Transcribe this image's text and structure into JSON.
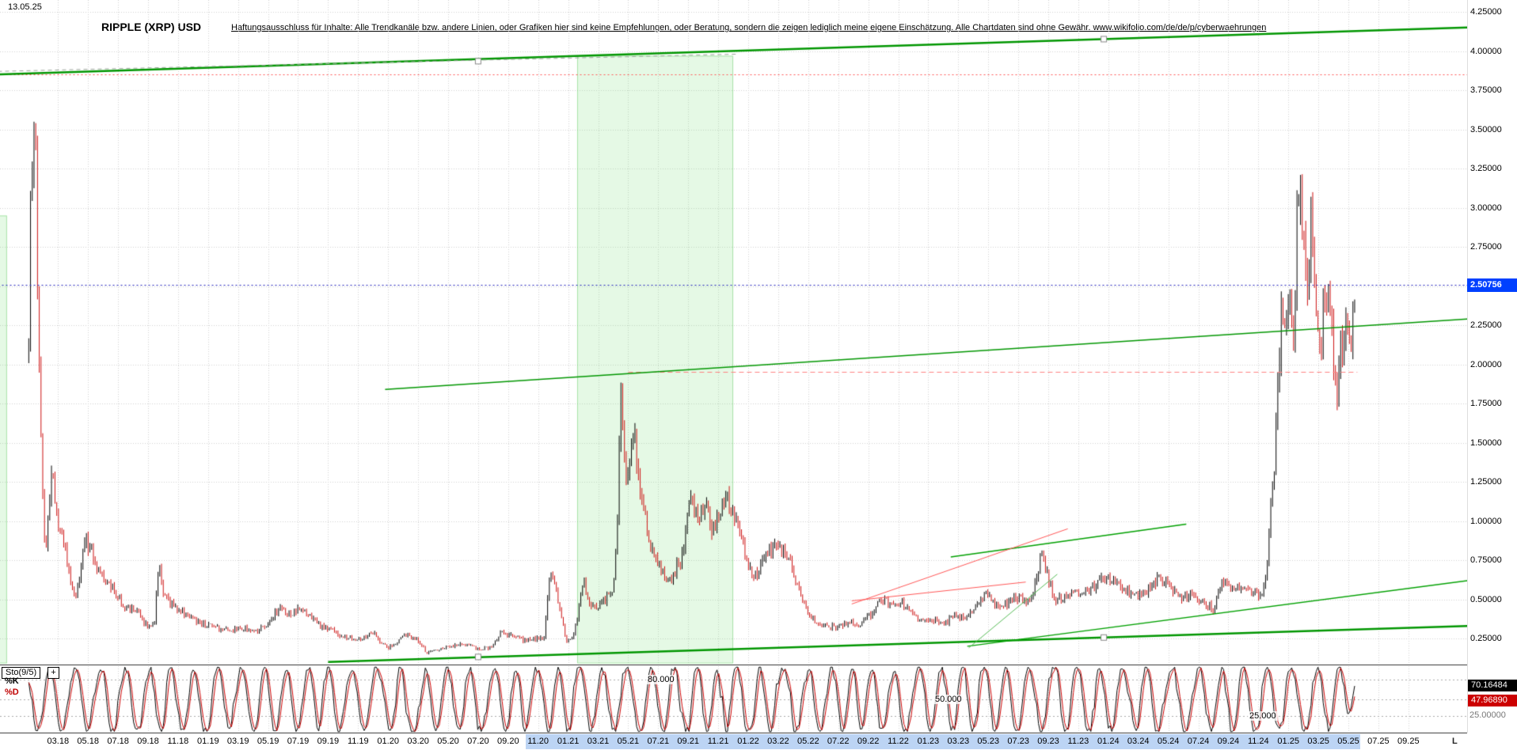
{
  "header": {
    "date_label": "13.05.25",
    "title": "RIPPLE (XRP) USD",
    "disclaimer": "Haftungsausschluss für Inhalte: Alle Trendkanäle bzw. andere Linien, oder Grafiken hier sind keine Empfehlungen, oder Beratung, sondern die zeigen lediglich meine eigene Einschätzung. Alle Chartdaten sind ohne Gewähr.  www.wikifolio.com/de/de/p/cyberwaehrungen"
  },
  "price_axis": {
    "labels": [
      "4.25000",
      "4.00000",
      "3.75000",
      "3.50000",
      "3.25000",
      "3.00000",
      "2.75000",
      "2.50000",
      "2.25000",
      "2.00000",
      "1.75000",
      "1.50000",
      "1.25000",
      "1.00000",
      "0.75000",
      "0.50000",
      "0.25000"
    ],
    "min": 0.25,
    "max": 4.25,
    "step": 0.25,
    "current_price": 2.50756,
    "current_price_label": "2.50756",
    "badge_color": "#0040ff"
  },
  "time_axis": {
    "labels": [
      "03.18",
      "05.18",
      "07.18",
      "09.18",
      "11.18",
      "01.19",
      "03.19",
      "05.19",
      "07.19",
      "09.19",
      "11.19",
      "01.20",
      "03.20",
      "05.20",
      "07.20",
      "09.20",
      "11.20",
      "01.21",
      "03.21",
      "05.21",
      "07.21",
      "09.21",
      "11.21",
      "01.22",
      "03.22",
      "05.22",
      "07.22",
      "09.22",
      "11.22",
      "01.23",
      "03.23",
      "05.23",
      "07.23",
      "09.23",
      "11.23",
      "01.24",
      "03.24",
      "05.24",
      "07.24",
      "09.24",
      "11.24",
      "01.25",
      "03.25",
      "05.25",
      "07.25",
      "09.25"
    ],
    "highlight_start": "11.20",
    "highlight_end": "05.25",
    "highlight_color": "#bcd4f4",
    "right_marker": "L"
  },
  "chart_data": {
    "type": "line",
    "style": "ohlc-bars",
    "title": "RIPPLE (XRP) USD",
    "xlabel": "",
    "ylabel": "USD",
    "x_unit": "months_since_2018-01",
    "xlim": [
      -2,
      97
    ],
    "ylim": [
      0.05,
      4.3
    ],
    "grid": true,
    "colors": {
      "up": "#000000",
      "down": "#cc1111",
      "grid": "#d0d0d0",
      "band": "rgba(125,225,125,0.20)",
      "band_edge": "rgba(90,200,90,0.45)"
    },
    "series": [
      {
        "name": "XRP/USD",
        "anchors": [
          [
            0.05,
            2.2
          ],
          [
            0.15,
            2.9
          ],
          [
            0.35,
            3.5
          ],
          [
            0.45,
            3.72
          ],
          [
            0.6,
            2.6
          ],
          [
            0.8,
            1.65
          ],
          [
            1.0,
            1.1
          ],
          [
            1.15,
            0.78
          ],
          [
            1.35,
            1.05
          ],
          [
            1.6,
            1.32
          ],
          [
            2.0,
            0.95
          ],
          [
            2.4,
            0.85
          ],
          [
            2.8,
            0.62
          ],
          [
            3.2,
            0.5
          ],
          [
            3.8,
            0.88
          ],
          [
            4.3,
            0.8
          ],
          [
            5.0,
            0.62
          ],
          [
            5.8,
            0.55
          ],
          [
            6.5,
            0.45
          ],
          [
            7.2,
            0.43
          ],
          [
            7.9,
            0.33
          ],
          [
            8.4,
            0.33
          ],
          [
            8.7,
            0.72
          ],
          [
            9.1,
            0.5
          ],
          [
            9.8,
            0.46
          ],
          [
            10.5,
            0.4
          ],
          [
            11.2,
            0.36
          ],
          [
            11.8,
            0.34
          ],
          [
            12.3,
            0.33
          ],
          [
            13.0,
            0.3
          ],
          [
            13.8,
            0.31
          ],
          [
            14.5,
            0.31
          ],
          [
            15.2,
            0.3
          ],
          [
            16.0,
            0.33
          ],
          [
            16.5,
            0.42
          ],
          [
            16.8,
            0.45
          ],
          [
            17.3,
            0.4
          ],
          [
            18.0,
            0.43
          ],
          [
            18.8,
            0.4
          ],
          [
            19.5,
            0.33
          ],
          [
            20.3,
            0.3
          ],
          [
            21.0,
            0.26
          ],
          [
            21.8,
            0.25
          ],
          [
            22.5,
            0.26
          ],
          [
            23.0,
            0.29
          ],
          [
            23.4,
            0.24
          ],
          [
            24.0,
            0.19
          ],
          [
            24.6,
            0.23
          ],
          [
            25.2,
            0.28
          ],
          [
            25.8,
            0.25
          ],
          [
            26.3,
            0.21
          ],
          [
            26.5,
            0.15
          ],
          [
            27.2,
            0.18
          ],
          [
            28.0,
            0.2
          ],
          [
            28.8,
            0.22
          ],
          [
            29.5,
            0.2
          ],
          [
            30.3,
            0.18
          ],
          [
            31.0,
            0.2
          ],
          [
            31.6,
            0.3
          ],
          [
            32.3,
            0.26
          ],
          [
            33.0,
            0.24
          ],
          [
            33.8,
            0.25
          ],
          [
            34.4,
            0.26
          ],
          [
            34.8,
            0.66
          ],
          [
            35.2,
            0.55
          ],
          [
            35.9,
            0.22
          ],
          [
            36.4,
            0.28
          ],
          [
            37.05,
            0.62
          ],
          [
            37.5,
            0.44
          ],
          [
            38.2,
            0.46
          ],
          [
            39.0,
            0.58
          ],
          [
            39.3,
            1.0
          ],
          [
            39.5,
            1.85
          ],
          [
            39.8,
            1.25
          ],
          [
            40.4,
            1.55
          ],
          [
            41.0,
            1.05
          ],
          [
            41.5,
            0.85
          ],
          [
            42.2,
            0.68
          ],
          [
            42.8,
            0.62
          ],
          [
            43.5,
            0.75
          ],
          [
            44.2,
            1.15
          ],
          [
            44.8,
            1.05
          ],
          [
            45.3,
            1.1
          ],
          [
            45.6,
            0.92
          ],
          [
            46.2,
            1.05
          ],
          [
            46.7,
            1.15
          ],
          [
            47.2,
            0.98
          ],
          [
            47.7,
            0.85
          ],
          [
            48.3,
            0.62
          ],
          [
            49.0,
            0.75
          ],
          [
            50.0,
            0.85
          ],
          [
            50.8,
            0.72
          ],
          [
            51.5,
            0.52
          ],
          [
            52.2,
            0.38
          ],
          [
            53.0,
            0.33
          ],
          [
            54.0,
            0.32
          ],
          [
            54.8,
            0.36
          ],
          [
            55.5,
            0.33
          ],
          [
            56.3,
            0.42
          ],
          [
            56.8,
            0.52
          ],
          [
            57.5,
            0.46
          ],
          [
            58.3,
            0.47
          ],
          [
            59.0,
            0.4
          ],
          [
            59.6,
            0.35
          ],
          [
            60.3,
            0.36
          ],
          [
            61.0,
            0.34
          ],
          [
            61.8,
            0.4
          ],
          [
            62.5,
            0.38
          ],
          [
            63.3,
            0.47
          ],
          [
            63.8,
            0.54
          ],
          [
            64.5,
            0.46
          ],
          [
            65.3,
            0.47
          ],
          [
            66.0,
            0.52
          ],
          [
            66.8,
            0.47
          ],
          [
            67.5,
            0.78
          ],
          [
            67.8,
            0.7
          ],
          [
            68.4,
            0.5
          ],
          [
            69.2,
            0.51
          ],
          [
            70.0,
            0.53
          ],
          [
            70.8,
            0.55
          ],
          [
            71.6,
            0.62
          ],
          [
            72.3,
            0.62
          ],
          [
            73.0,
            0.57
          ],
          [
            73.8,
            0.52
          ],
          [
            74.5,
            0.55
          ],
          [
            75.3,
            0.63
          ],
          [
            76.0,
            0.6
          ],
          [
            76.8,
            0.5
          ],
          [
            77.5,
            0.53
          ],
          [
            78.3,
            0.48
          ],
          [
            79.0,
            0.44
          ],
          [
            79.6,
            0.6
          ],
          [
            80.3,
            0.56
          ],
          [
            81.0,
            0.58
          ],
          [
            81.8,
            0.53
          ],
          [
            82.3,
            0.52
          ],
          [
            82.6,
            0.72
          ],
          [
            82.9,
            1.2
          ],
          [
            83.1,
            1.42
          ],
          [
            83.5,
            2.28
          ],
          [
            83.8,
            2.2
          ],
          [
            84.1,
            2.58
          ],
          [
            84.4,
            2.1
          ],
          [
            84.65,
            3.18
          ],
          [
            84.9,
            3.0
          ],
          [
            85.2,
            2.45
          ],
          [
            85.5,
            2.88
          ],
          [
            85.8,
            2.3
          ],
          [
            86.2,
            2.12
          ],
          [
            86.5,
            2.52
          ],
          [
            86.9,
            2.2
          ],
          [
            87.2,
            1.72
          ],
          [
            87.5,
            2.08
          ],
          [
            87.8,
            2.28
          ],
          [
            88.1,
            2.12
          ],
          [
            88.42,
            2.51
          ]
        ]
      }
    ],
    "annotations": {
      "hlines": [
        {
          "name": "ath-resistance-line",
          "price": 3.85,
          "color": "#ff5555",
          "dash": [
            2,
            3
          ],
          "t1": -2,
          "t2": 97
        },
        {
          "name": "current-price-line",
          "price": 2.50756,
          "color": "#2222bb",
          "dash": [
            2,
            3
          ],
          "t1": -2,
          "t2": 97
        },
        {
          "name": "high-2021-resistance-line",
          "price": 1.95,
          "color": "#ff8080",
          "dash": [
            6,
            4
          ],
          "t1": 40,
          "t2": 88.6
        }
      ],
      "trendlines": [
        {
          "name": "top-green-channel-line",
          "color": "#009600",
          "width": 2.5,
          "points": [
            [
              -2,
              3.85
            ],
            [
              96,
              4.15
            ]
          ]
        },
        {
          "name": "top-dashed-line",
          "color": "#9aa49a",
          "width": 1,
          "dash": [
            5,
            4
          ],
          "points": [
            [
              -2,
              3.87
            ],
            [
              47.2,
              3.98
            ]
          ]
        },
        {
          "name": "mid-green-resistance-line",
          "color": "#009600",
          "width": 1.6,
          "points": [
            [
              23.8,
              1.84
            ],
            [
              96,
              2.29
            ]
          ]
        },
        {
          "name": "main-green-support-line",
          "color": "#009600",
          "width": 2.5,
          "points": [
            [
              20,
              0.1
            ],
            [
              96,
              0.33
            ]
          ]
        },
        {
          "name": "secondary-green-support-line",
          "color": "#00a000",
          "width": 1.4,
          "points": [
            [
              62.6,
              0.2
            ],
            [
              96,
              0.62
            ]
          ]
        },
        {
          "name": "green-channel-2023-top-line",
          "color": "#00a000",
          "width": 1.4,
          "points": [
            [
              61.5,
              0.77
            ],
            [
              77.2,
              0.98
            ]
          ]
        },
        {
          "name": "steep-green-2023-line",
          "color": "#55bb55",
          "width": 1,
          "points": [
            [
              62.7,
              0.19
            ],
            [
              68.6,
              0.66
            ]
          ]
        },
        {
          "name": "red-rising-2023-line",
          "color": "#ff5555",
          "width": 1,
          "points": [
            [
              54.9,
              0.47
            ],
            [
              69.3,
              0.95
            ]
          ]
        },
        {
          "name": "red-flat-2023-line",
          "color": "#ff5555",
          "width": 1,
          "points": [
            [
              54.9,
              0.49
            ],
            [
              66.5,
              0.61
            ]
          ]
        }
      ],
      "bands": [
        {
          "name": "green-zone-2021",
          "t1": 36.6,
          "t2": 47.0,
          "top": 3.97,
          "bottom": 0.09
        },
        {
          "name": "green-zone-left-edge",
          "t1": -2,
          "t2": -1.4,
          "top": 2.95,
          "bottom": 0.09
        }
      ],
      "handles": [
        [
          30,
          3.935
        ],
        [
          71.7,
          4.076
        ],
        [
          71.7,
          0.256
        ],
        [
          30,
          0.132
        ]
      ]
    }
  },
  "oscillator": {
    "indicator_label": "Sto(9/5)",
    "add_button_label": "+",
    "k_label": "%K",
    "d_label": "%D",
    "k_value": "70.16484",
    "d_value": "47.96890",
    "axis_bottom_label": "25.00000",
    "k_color": "#000000",
    "d_color": "#cc0000",
    "range": [
      0,
      100
    ],
    "levels": [
      {
        "value": 80,
        "label": "80.000"
      },
      {
        "value": 50,
        "label": "50.000"
      },
      {
        "value": 25,
        "label": "25.000"
      }
    ]
  }
}
